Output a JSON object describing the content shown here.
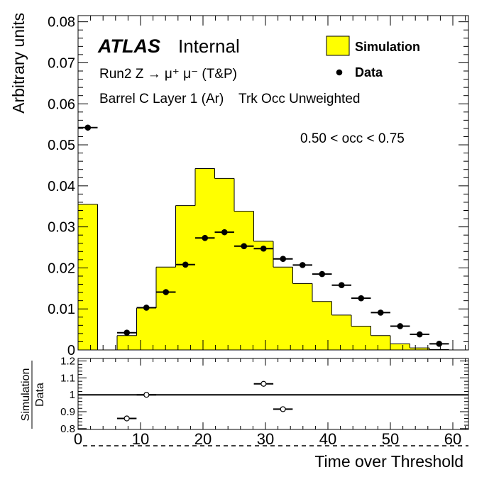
{
  "chart_data": {
    "type": "bar",
    "xlabel": "Time over Threshold",
    "ylabel": "Arbitrary units",
    "xlim": [
      0,
      62.5
    ],
    "ylim": [
      0,
      0.0815
    ],
    "bin_width": 3.125,
    "x_ticks": [
      0,
      10,
      20,
      30,
      40,
      50,
      60
    ],
    "y_ticks": [
      "0",
      "0.01",
      "0.02",
      "0.03",
      "0.04",
      "0.05",
      "0.06",
      "0.07",
      "0.08"
    ],
    "y_tick_values": [
      0,
      0.01,
      0.02,
      0.03,
      0.04,
      0.05,
      0.06,
      0.07,
      0.08
    ],
    "annotations": {
      "atlas": "ATLAS",
      "internal": "Internal",
      "line1": "Run2 Z → μ⁺ μ⁻ (T&P)",
      "line2": "Barrel C Layer 1 (Ar)    Trk Occ Unweighted",
      "occ": "0.50 < occ < 0.75"
    },
    "legend": {
      "placement": "top-right",
      "entries": [
        "Simulation",
        "Data"
      ]
    },
    "series": [
      {
        "name": "Simulation",
        "style": "filled-histogram",
        "color": "#ffff00",
        "values": [
          0.0355,
          0,
          0.0035,
          0.0102,
          0.0202,
          0.0352,
          0.0442,
          0.0418,
          0.0338,
          0.0265,
          0.0202,
          0.0162,
          0.0118,
          0.0085,
          0.0058,
          0.0035,
          0.0015,
          0.0005,
          0.0001,
          0
        ]
      },
      {
        "name": "Data",
        "style": "points",
        "color": "#000000",
        "values": [
          0.0542,
          null,
          0.0042,
          0.0103,
          0.0141,
          0.0208,
          0.0273,
          0.0287,
          0.0253,
          0.0247,
          0.0222,
          0.0207,
          0.0185,
          0.0158,
          0.0126,
          0.0091,
          0.0058,
          0.0038,
          0.0015,
          null
        ]
      }
    ],
    "ratio_panel": {
      "ylabel_num": "Simulation",
      "ylabel_den": "Data",
      "ylim": [
        0.795,
        1.215
      ],
      "y_ticks": [
        "0.8",
        "0.9",
        "1",
        "1.1",
        "1.2"
      ],
      "y_tick_values": [
        0.8,
        0.9,
        1.0,
        1.1,
        1.2
      ],
      "reference_line": 1,
      "points": [
        {
          "x": 7.8,
          "y": 0.86
        },
        {
          "x": 10.95,
          "y": 1.0
        },
        {
          "x": 29.7,
          "y": 1.065
        },
        {
          "x": 32.8,
          "y": 0.915
        }
      ]
    }
  }
}
